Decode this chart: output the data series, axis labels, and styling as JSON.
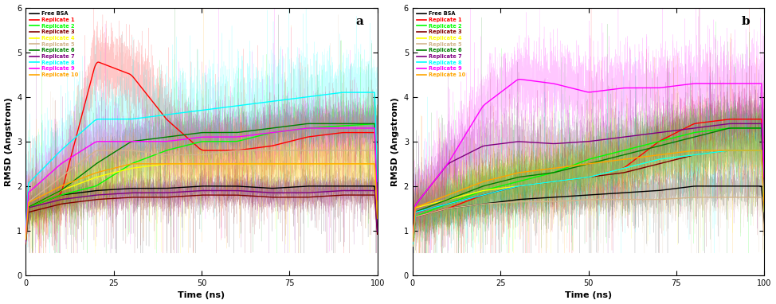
{
  "colors": {
    "Free BSA": "#000000",
    "Replicate 1": "#ff0000",
    "Replicate 2": "#00ff00",
    "Replicate 3": "#800000",
    "Replicate 4": "#ffff00",
    "Replicate 5": "#d2b48c",
    "Replicate 6": "#008000",
    "Replicate 7": "#800080",
    "Replicate 8": "#00ffff",
    "Replicate 9": "#ff00ff",
    "Replicate 10": "#ffa500"
  },
  "legend_labels": [
    "Free BSA",
    "Replicate 1",
    "Replicate 2",
    "Replicate 3",
    "Replicate 4",
    "Replicate 5",
    "Replicate 6",
    "Replicate 7",
    "Replicate 8",
    "Replicate 9",
    "Replicate 10"
  ],
  "xlabel": "Time (ns)",
  "ylabel": "RMSD (Angstrom)",
  "ylim": [
    0,
    6
  ],
  "xlim": [
    0,
    100
  ],
  "yticks": [
    0,
    1,
    2,
    3,
    4,
    5,
    6
  ],
  "xticks": [
    0,
    25,
    50,
    75,
    100
  ],
  "label_a": "a",
  "label_b": "b"
}
